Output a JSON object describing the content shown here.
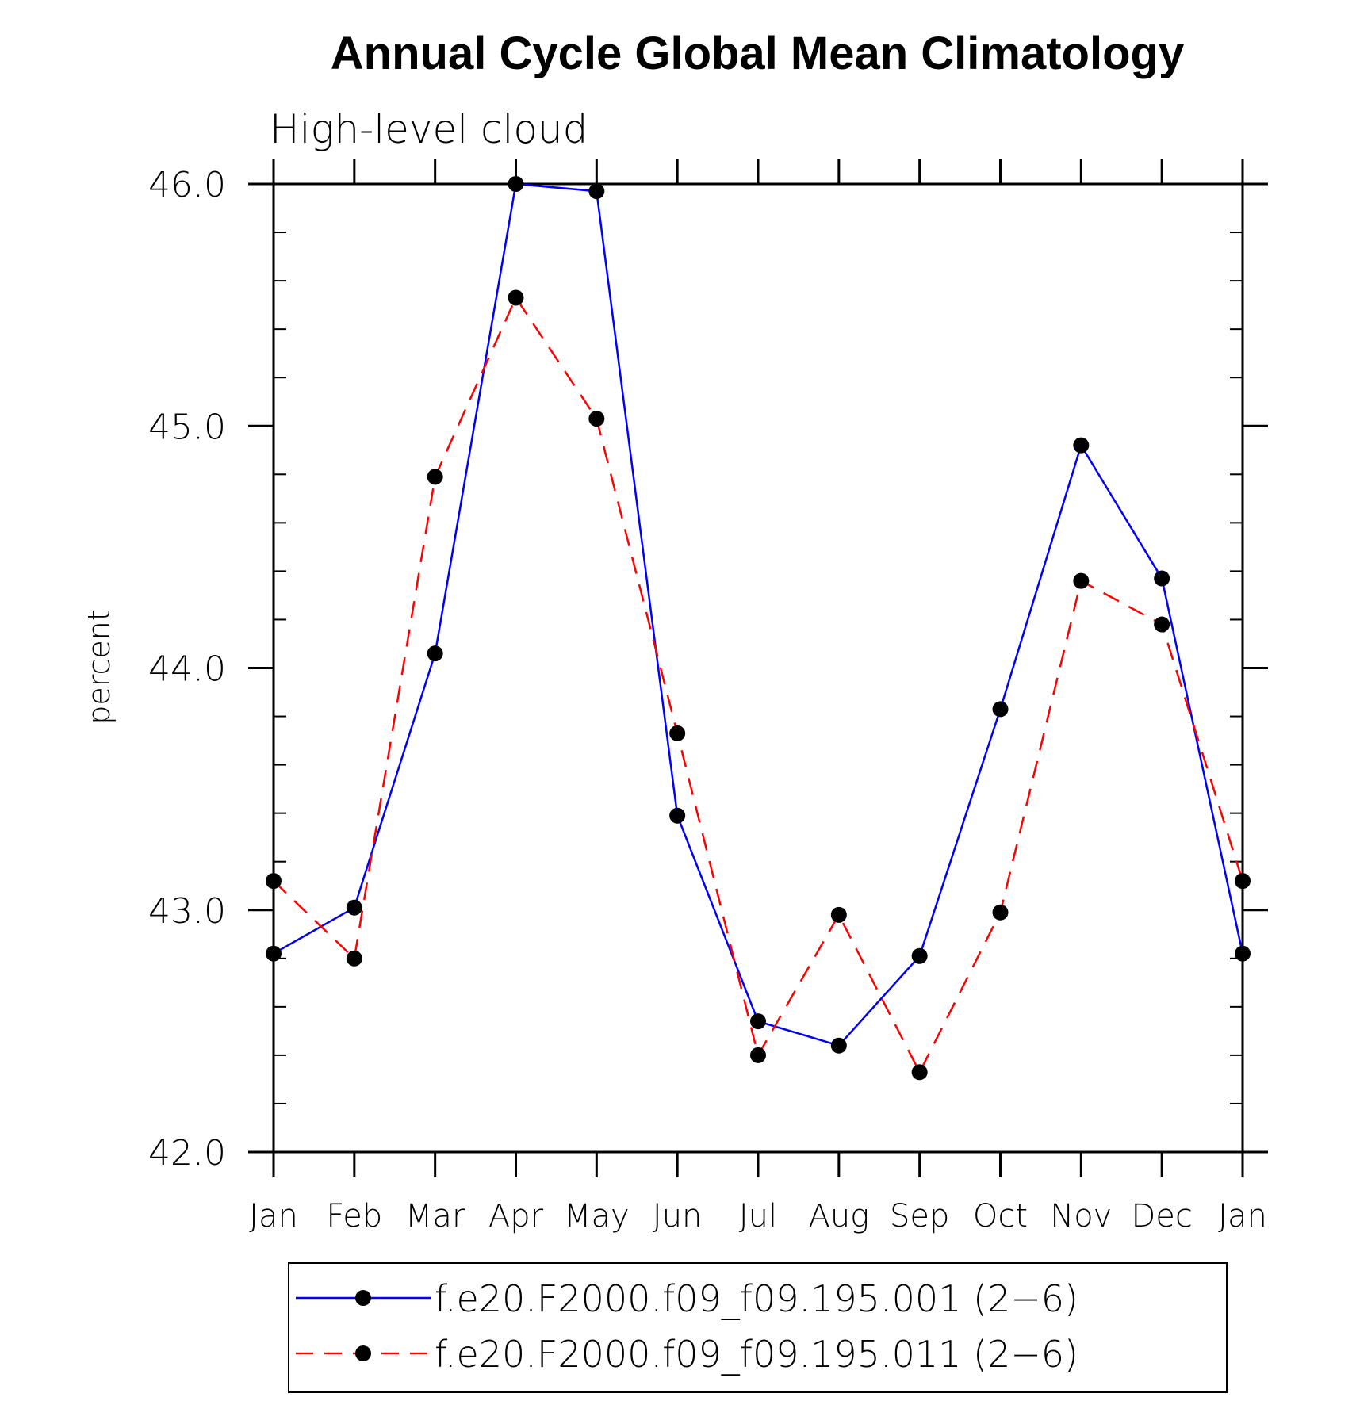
{
  "chart_data": {
    "type": "line",
    "title": "Annual Cycle Global Mean Climatology",
    "subtitle": "High-level cloud",
    "xlabel": "",
    "ylabel": "percent",
    "categories": [
      "Jan",
      "Feb",
      "Mar",
      "Apr",
      "May",
      "Jun",
      "Jul",
      "Aug",
      "Sep",
      "Oct",
      "Nov",
      "Dec",
      "Jan"
    ],
    "ylim": [
      42.0,
      46.0
    ],
    "yticks": [
      42.0,
      43.0,
      44.0,
      45.0,
      46.0
    ],
    "ytick_labels": [
      "42.0",
      "43.0",
      "44.0",
      "45.0",
      "46.0"
    ],
    "grid": false,
    "legend_position": "bottom",
    "series": [
      {
        "name": "f.e20.F2000.f09_f09.195.001 (2−6)",
        "color": "#0000ff",
        "line_style": "solid",
        "marker": "filled-circle",
        "values": [
          42.82,
          43.01,
          44.06,
          46.0,
          45.97,
          43.39,
          42.54,
          42.44,
          42.81,
          43.83,
          44.92,
          44.37,
          42.82
        ]
      },
      {
        "name": "f.e20.F2000.f09_f09.195.011 (2−6)",
        "color": "#ff0000",
        "line_style": "dashed",
        "marker": "filled-circle",
        "values": [
          43.12,
          42.8,
          44.79,
          45.53,
          45.03,
          43.73,
          42.4,
          42.98,
          42.33,
          42.99,
          44.36,
          44.18,
          43.12
        ]
      }
    ]
  }
}
